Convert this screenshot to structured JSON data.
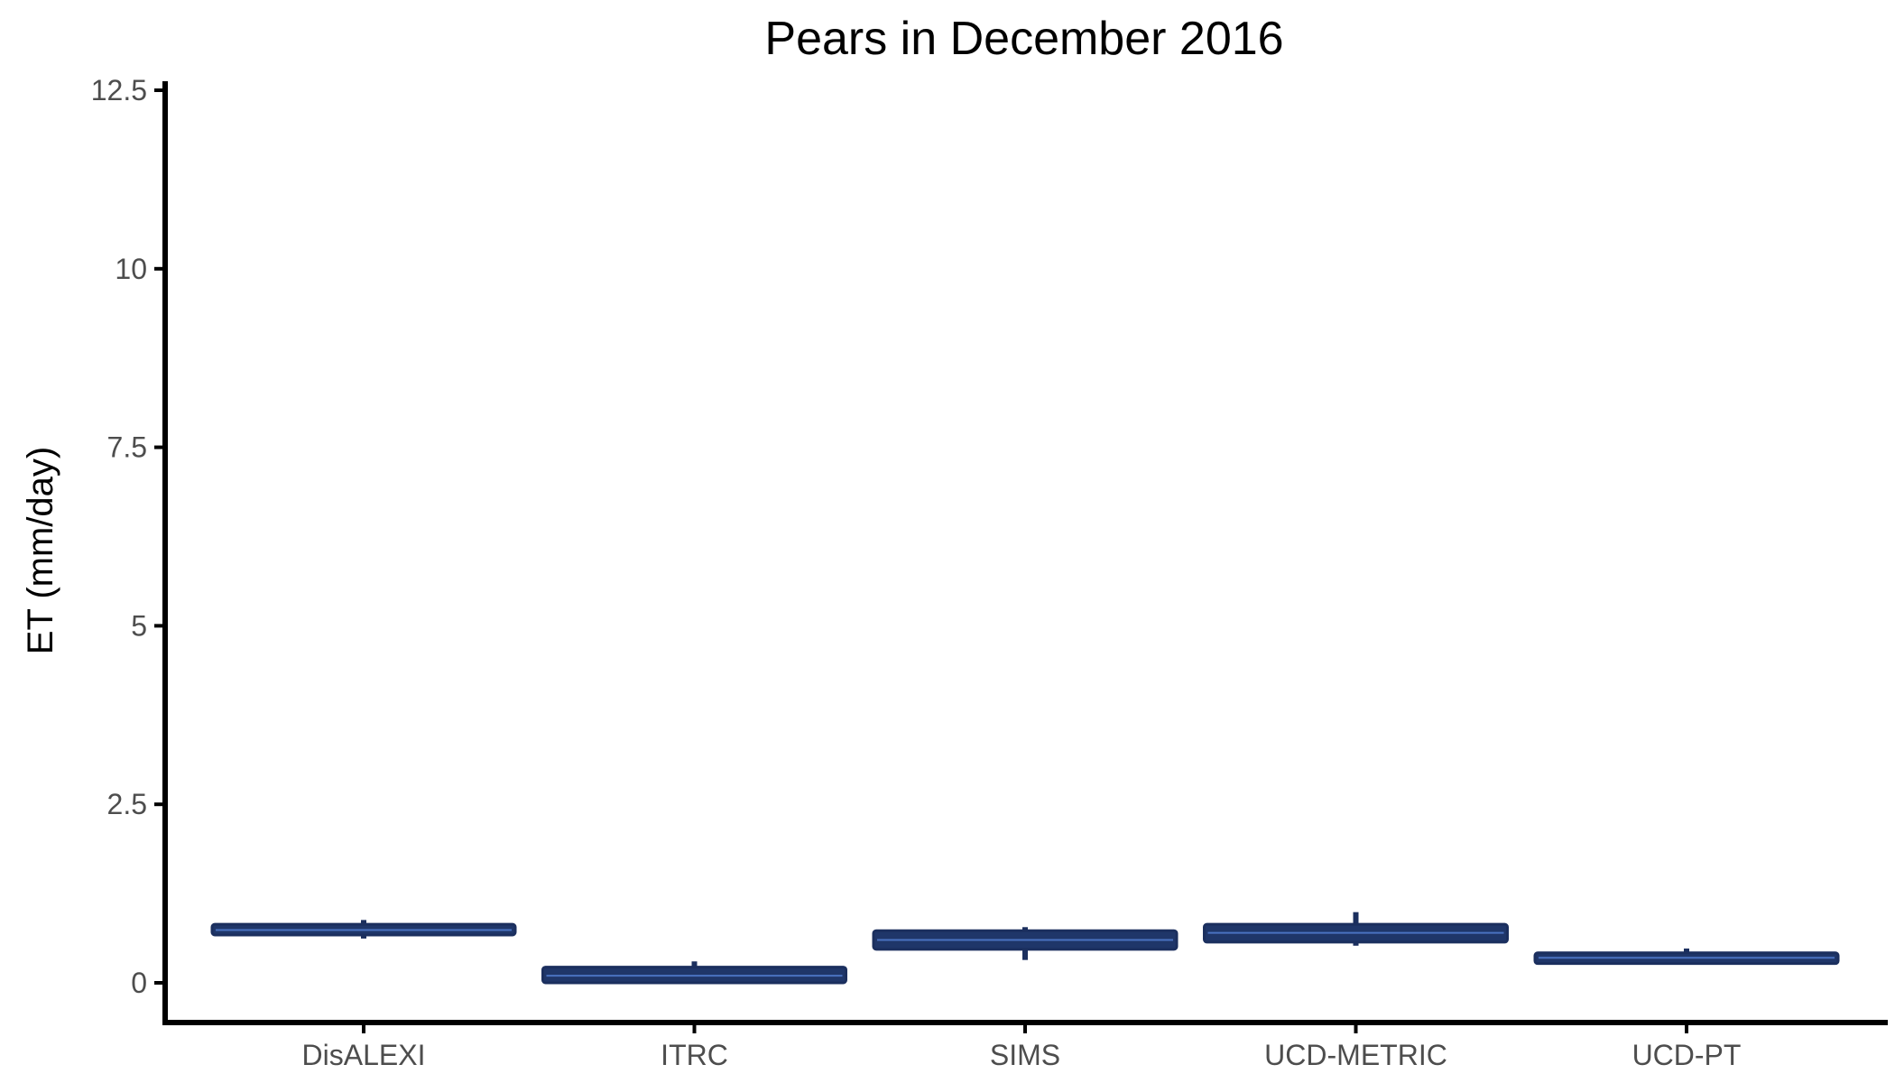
{
  "chart_data": {
    "type": "boxplot",
    "title": "Pears in December 2016",
    "xlabel": "",
    "ylabel": "ET (mm/day)",
    "ylim": [
      -0.55,
      12.6
    ],
    "yticks": [
      0,
      2.5,
      5,
      7.5,
      10,
      12.5
    ],
    "ytick_labels": [
      "0",
      "2.5",
      "5",
      "7.5",
      "10",
      "12.5"
    ],
    "grid": false,
    "legend": "none",
    "colors": {
      "box_fill": "#1f3669",
      "box_stroke": "#1b2f5e",
      "median": "#4a72c0",
      "axis": "#000000"
    },
    "categories": [
      "DisALEXI",
      "ITRC",
      "SIMS",
      "UCD-METRIC",
      "UCD-PT"
    ],
    "boxes": [
      {
        "category": "DisALEXI",
        "whisker_low": 0.62,
        "q1": 0.67,
        "median": 0.74,
        "q3": 0.82,
        "whisker_high": 0.88
      },
      {
        "category": "ITRC",
        "whisker_low": 0.0,
        "q1": 0.0,
        "median": 0.1,
        "q3": 0.22,
        "whisker_high": 0.3
      },
      {
        "category": "SIMS",
        "whisker_low": 0.32,
        "q1": 0.47,
        "median": 0.6,
        "q3": 0.73,
        "whisker_high": 0.78
      },
      {
        "category": "UCD-METRIC",
        "whisker_low": 0.52,
        "q1": 0.57,
        "median": 0.7,
        "q3": 0.82,
        "whisker_high": 0.99
      },
      {
        "category": "UCD-PT",
        "whisker_low": 0.27,
        "q1": 0.27,
        "median": 0.35,
        "q3": 0.42,
        "whisker_high": 0.48
      }
    ]
  }
}
